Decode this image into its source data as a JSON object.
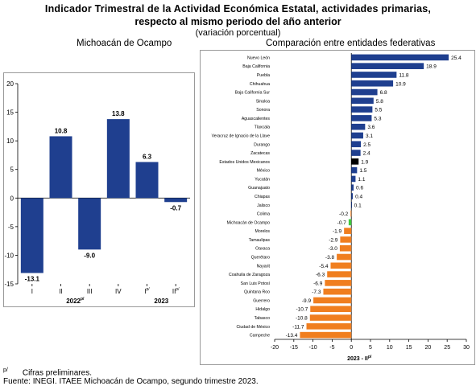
{
  "title": {
    "line1": "Indicador Trimestral de la Actividad Económica Estatal, actividades primarias,",
    "line2": "respecto al mismo periodo del año anterior",
    "line3": "(variación porcentual)"
  },
  "subtitles": {
    "left": "Michoacán de Ocampo",
    "right": "Comparación entre entidades federativas"
  },
  "footnote": {
    "symbol": "p/",
    "text": "Cifras preliminares."
  },
  "source": "Fuente: INEGI. ITAEE Michoacán de Ocampo, segundo trimestre 2023.",
  "colors": {
    "blue": "#1f3f8f",
    "orange": "#f07e1f",
    "black": "#000000",
    "green": "#3ec93e"
  },
  "chart_data": [
    {
      "type": "bar",
      "title": "Michoacán de Ocampo",
      "categories": [
        "I",
        "II",
        "III",
        "IV",
        "I",
        "II"
      ],
      "category_superscripts": [
        "",
        "",
        "",
        "",
        "p/",
        "p/"
      ],
      "groups": [
        {
          "label": "2022",
          "superscript": "p/",
          "span": [
            0,
            3
          ]
        },
        {
          "label": "2023",
          "superscript": "",
          "span": [
            4,
            5
          ]
        }
      ],
      "values": [
        -13.1,
        10.8,
        -9.0,
        13.8,
        6.3,
        -0.7
      ],
      "value_labels": [
        "-13.1",
        "10.8",
        "-9.0",
        "13.8",
        "6.3",
        "-0.7"
      ],
      "ylim": [
        -15,
        20
      ],
      "yticks": [
        -15,
        -10,
        -5,
        0,
        5,
        10,
        15,
        20
      ],
      "ytick_labels": [
        "-15",
        "-10",
        "-5",
        "0",
        "5",
        "10",
        "15",
        "20"
      ],
      "grid": false
    },
    {
      "type": "bar",
      "orientation": "horizontal",
      "title": "Comparación entre entidades federativas",
      "xlabel": "2023 - II",
      "xlabel_superscript": "p/",
      "xlim": [
        -20,
        30
      ],
      "xticks": [
        -20,
        -15,
        -10,
        -5,
        0,
        5,
        10,
        15,
        20,
        25,
        30
      ],
      "xtick_labels": [
        "-20",
        "-15",
        "-10",
        "-5",
        "0",
        "5",
        "10",
        "15",
        "20",
        "25",
        "30"
      ],
      "grid": false,
      "categories": [
        "Nuevo León",
        "Baja California",
        "Puebla",
        "Chihuahua",
        "Baja California Sur",
        "Sinaloa",
        "Sonora",
        "Aguascalientes",
        "Tlaxcala",
        "Veracruz de Ignacio de la Llave",
        "Durango",
        "Zacatecas",
        "Estados Unidos Mexicanos",
        "México",
        "Yucatán",
        "Guanajuato",
        "Chiapas",
        "Jalisco",
        "Colima",
        "Michoacán de Ocampo",
        "Morelos",
        "Tamaulipas",
        "Oaxaca",
        "Querétaro",
        "Nayarit",
        "Coahuila de Zaragoza",
        "San Luis Potosí",
        "Quintana Roo",
        "Guerrero",
        "Hidalgo",
        "Tabasco",
        "Ciudad de México",
        "Campeche"
      ],
      "values": [
        25.4,
        18.9,
        11.8,
        10.9,
        6.8,
        5.8,
        5.5,
        5.3,
        3.6,
        3.1,
        2.5,
        2.4,
        1.9,
        1.5,
        1.1,
        0.6,
        0.4,
        0.1,
        -0.2,
        -0.7,
        -1.9,
        -2.9,
        -3.0,
        -3.8,
        -5.4,
        -6.3,
        -6.9,
        -7.3,
        -9.9,
        -10.7,
        -10.8,
        -11.7,
        -13.4
      ],
      "value_labels": [
        "25.4",
        "18.9",
        "11.8",
        "10.9",
        "6.8",
        "5.8",
        "5.5",
        "5.3",
        "3.6",
        "3.1",
        "2.5",
        "2.4",
        "1.9",
        "1.5",
        "1.1",
        "0.6",
        "0.4",
        "0.1",
        "-0.2",
        "-0.7",
        "-1.9",
        "-2.9",
        "-3.0",
        "-3.8",
        "-5.4",
        "-6.3",
        "-6.9",
        "-7.3",
        "-9.9",
        "-10.7",
        "-10.8",
        "-11.7",
        "-13.4"
      ],
      "bar_colors": [
        "blue",
        "blue",
        "blue",
        "blue",
        "blue",
        "blue",
        "blue",
        "blue",
        "blue",
        "blue",
        "blue",
        "blue",
        "black",
        "blue",
        "blue",
        "blue",
        "blue",
        "blue",
        "orange",
        "green",
        "orange",
        "orange",
        "orange",
        "orange",
        "orange",
        "orange",
        "orange",
        "orange",
        "orange",
        "orange",
        "orange",
        "orange",
        "orange"
      ]
    }
  ]
}
